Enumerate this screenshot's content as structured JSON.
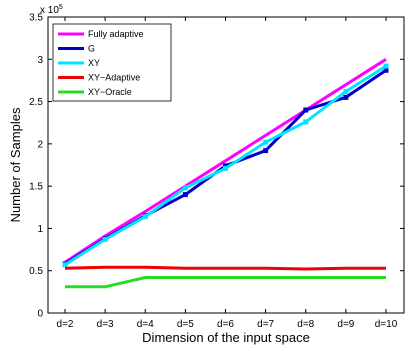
{
  "chart_data": {
    "type": "line",
    "categories": [
      "d=2",
      "d=3",
      "d=4",
      "d=5",
      "d=6",
      "d=7",
      "d=8",
      "d=9",
      "d=10"
    ],
    "xlabel": "Dimension of the input space",
    "ylabel": "Number of Samples",
    "ylim": [
      0,
      3.5
    ],
    "y_ticks": [
      "0",
      "0.5",
      "1",
      "1.5",
      "2",
      "2.5",
      "3",
      "3.5"
    ],
    "y_multiplier": "x 10",
    "y_multiplier_exp": "5",
    "legend_position": "top-left",
    "grid": false,
    "series": [
      {
        "name": "Fully adaptive",
        "color": "#ff00ff",
        "marker": "none",
        "values": [
          0.6,
          0.91,
          1.2,
          1.5,
          1.8,
          2.1,
          2.4,
          2.7,
          3.0
        ]
      },
      {
        "name": "G",
        "color": "#0000cc",
        "marker": "square",
        "values": [
          0.58,
          0.88,
          1.15,
          1.4,
          1.74,
          1.92,
          2.4,
          2.55,
          2.87
        ]
      },
      {
        "name": "XY",
        "color": "#00e5ff",
        "marker": "square",
        "values": [
          0.57,
          0.87,
          1.14,
          1.48,
          1.71,
          2.02,
          2.26,
          2.62,
          2.92
        ]
      },
      {
        "name": "XY−Adaptive",
        "color": "#ee0000",
        "marker": "none",
        "values": [
          0.53,
          0.54,
          0.54,
          0.53,
          0.53,
          0.53,
          0.52,
          0.53,
          0.53
        ]
      },
      {
        "name": "XY−Oracle",
        "color": "#22dd22",
        "marker": "none",
        "values": [
          0.31,
          0.31,
          0.42,
          0.42,
          0.42,
          0.42,
          0.42,
          0.42,
          0.42
        ]
      }
    ]
  }
}
